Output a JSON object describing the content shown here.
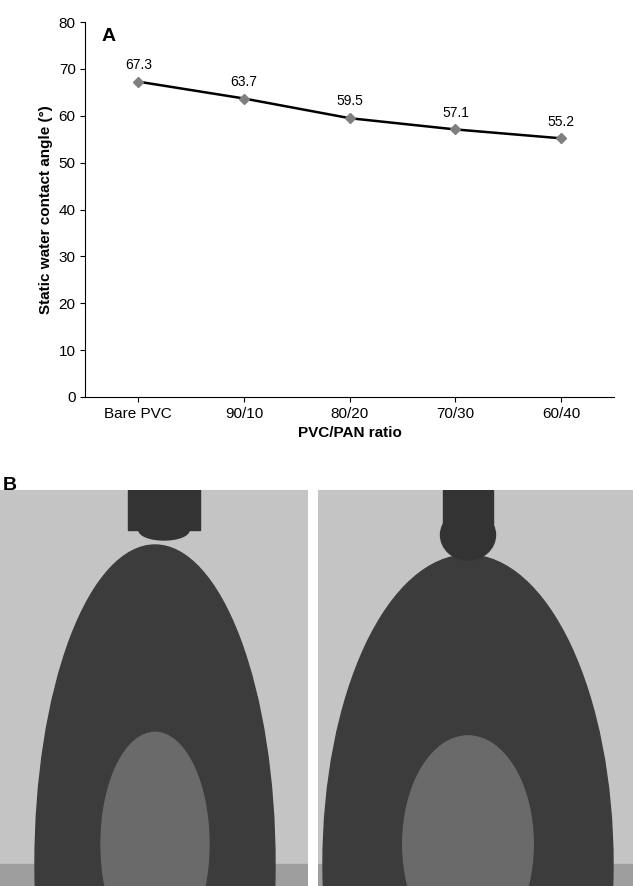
{
  "chart_data": {
    "type": "line",
    "title": "A",
    "categories": [
      "Bare PVC",
      "90/10",
      "80/20",
      "70/30",
      "60/40"
    ],
    "values": [
      67.3,
      63.7,
      59.5,
      57.1,
      55.2
    ],
    "x_label": "PVC/PAN ratio",
    "y_label": "Static water contact angle (°)",
    "color": "#000000",
    "marker": "diamond",
    "line_style": "solid",
    "ylim": [
      0,
      80
    ],
    "yticks": [
      0,
      10,
      20,
      30,
      40,
      50,
      60,
      70,
      80
    ],
    "grid": false,
    "data_labels": true
  },
  "image_panel": {
    "title": "B"
  }
}
